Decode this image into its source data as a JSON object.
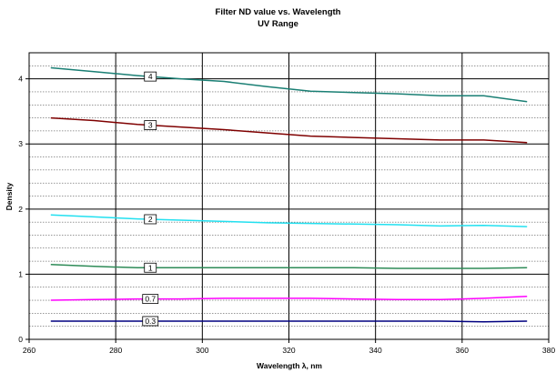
{
  "chart_data": {
    "type": "line",
    "title": "Filter ND value vs. Wavelength",
    "subtitle": "UV Range",
    "xlabel": "Wavelength λ, nm",
    "ylabel": "Density",
    "xlim": [
      260,
      380
    ],
    "ylim": [
      0,
      4.4
    ],
    "x_ticks": [
      260,
      280,
      300,
      320,
      340,
      360,
      380
    ],
    "y_ticks": [
      0,
      1,
      2,
      3,
      4
    ],
    "grid": {
      "vertical_major": true,
      "horizontal_major": true,
      "horizontal_minor_step": 0.2
    },
    "series": [
      {
        "name": "4",
        "color": "#1a7f74",
        "x": [
          265,
          275,
          285,
          295,
          305,
          315,
          325,
          335,
          345,
          355,
          365,
          375
        ],
        "y": [
          4.17,
          4.11,
          4.05,
          4.0,
          3.96,
          3.88,
          3.81,
          3.79,
          3.77,
          3.74,
          3.74,
          3.65
        ],
        "label_x": 288
      },
      {
        "name": "3",
        "color": "#7f0000",
        "x": [
          265,
          275,
          285,
          295,
          305,
          315,
          325,
          335,
          345,
          355,
          365,
          375
        ],
        "y": [
          3.4,
          3.36,
          3.3,
          3.26,
          3.22,
          3.17,
          3.12,
          3.1,
          3.08,
          3.06,
          3.06,
          3.02
        ],
        "label_x": 288
      },
      {
        "name": "2",
        "color": "#22e0f0",
        "x": [
          265,
          275,
          285,
          295,
          305,
          315,
          325,
          335,
          345,
          355,
          365,
          375
        ],
        "y": [
          1.91,
          1.88,
          1.85,
          1.83,
          1.81,
          1.79,
          1.78,
          1.77,
          1.76,
          1.74,
          1.75,
          1.73
        ],
        "label_x": 288
      },
      {
        "name": "1",
        "color": "#2e8b57",
        "x": [
          265,
          275,
          285,
          295,
          305,
          315,
          325,
          335,
          345,
          355,
          365,
          375
        ],
        "y": [
          1.15,
          1.12,
          1.1,
          1.1,
          1.1,
          1.1,
          1.1,
          1.1,
          1.09,
          1.09,
          1.09,
          1.1
        ],
        "label_x": 288
      },
      {
        "name": "0.7",
        "color": "#ff00ff",
        "x": [
          265,
          275,
          285,
          295,
          305,
          315,
          325,
          335,
          345,
          355,
          365,
          375
        ],
        "y": [
          0.6,
          0.61,
          0.62,
          0.62,
          0.63,
          0.63,
          0.63,
          0.62,
          0.61,
          0.61,
          0.63,
          0.66
        ],
        "label_x": 288
      },
      {
        "name": "0.3",
        "color": "#000080",
        "x": [
          265,
          275,
          285,
          295,
          305,
          315,
          325,
          335,
          345,
          355,
          365,
          375
        ],
        "y": [
          0.28,
          0.28,
          0.28,
          0.28,
          0.28,
          0.28,
          0.28,
          0.28,
          0.28,
          0.28,
          0.27,
          0.28
        ],
        "label_x": 288
      }
    ]
  }
}
